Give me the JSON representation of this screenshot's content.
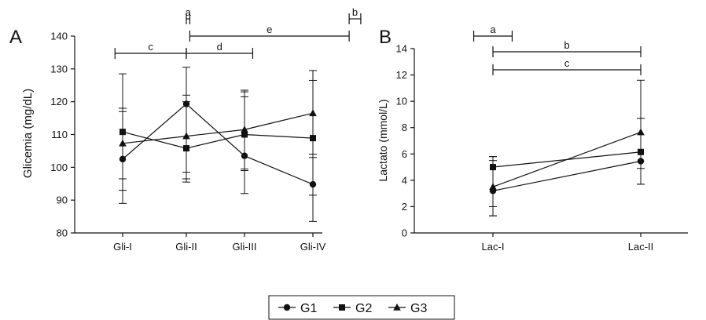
{
  "legend": [
    {
      "name": "G1",
      "marker": "circle"
    },
    {
      "name": "G2",
      "marker": "square"
    },
    {
      "name": "G3",
      "marker": "triangle"
    }
  ],
  "chart_data": [
    {
      "panel": "A",
      "type": "line",
      "ylabel": "Glicemia (mg/dL)",
      "ylim": [
        80,
        140
      ],
      "yticks": [
        80,
        90,
        100,
        110,
        120,
        130,
        140
      ],
      "categories": [
        "Gli-I",
        "Gli-II",
        "Gli-III",
        "Gli-IV"
      ],
      "series": [
        {
          "name": "G1",
          "values": [
            102.5,
            119.3,
            103.5,
            94.8
          ],
          "err_low": [
            89,
            95.5,
            92,
            83.5
          ],
          "err_high": [
            117,
            130.5,
            123.5,
            104
          ]
        },
        {
          "name": "G2",
          "values": [
            110.8,
            105.8,
            110,
            108.9
          ],
          "err_low": [
            93,
            96.5,
            99.5,
            91.5
          ],
          "err_high": [
            128.5,
            122,
            123,
            126.5
          ]
        },
        {
          "name": "G3",
          "values": [
            107.3,
            109.5,
            111.5,
            116.5
          ],
          "err_low": [
            96.5,
            98.5,
            99,
            103
          ],
          "err_high": [
            118,
            120,
            121.5,
            129.5
          ]
        }
      ],
      "brackets": [
        {
          "label": "a",
          "from": 1,
          "to": 1.06,
          "level": 0
        },
        {
          "label": "b",
          "from": 3.53,
          "to": 3.7,
          "level": 0
        },
        {
          "label": "e",
          "from": 1.06,
          "to": 3.53,
          "level": 1
        },
        {
          "label": "c",
          "from": -0.12,
          "to": 1,
          "level": 2
        },
        {
          "label": "d",
          "from": 1,
          "to": 2.12,
          "level": 2
        }
      ]
    },
    {
      "panel": "B",
      "type": "line",
      "ylabel": "Lactato (mmol/L)",
      "ylim": [
        0,
        14
      ],
      "yticks": [
        0,
        2,
        4,
        6,
        8,
        10,
        12,
        14
      ],
      "categories": [
        "Lac-I",
        "Lac-II"
      ],
      "series": [
        {
          "name": "G1",
          "values": [
            3.2,
            5.45
          ],
          "err_low": [
            2.0,
            4.9
          ],
          "err_high": [
            5.8,
            8.7
          ]
        },
        {
          "name": "G2",
          "values": [
            5.0,
            6.15
          ],
          "err_low": [
            1.3,
            3.7
          ],
          "err_high": [
            5.8,
            8.7
          ]
        },
        {
          "name": "G3",
          "values": [
            3.5,
            7.65
          ],
          "err_low": [
            1.3,
            3.7
          ],
          "err_high": [
            5.5,
            11.6
          ]
        }
      ],
      "brackets": [
        {
          "label": "a",
          "from": -0.13,
          "to": 0.13,
          "level": 0
        },
        {
          "label": "b",
          "from": 0,
          "to": 1,
          "level": 1
        },
        {
          "label": "c",
          "from": 0,
          "to": 1,
          "level": 2
        }
      ]
    }
  ]
}
